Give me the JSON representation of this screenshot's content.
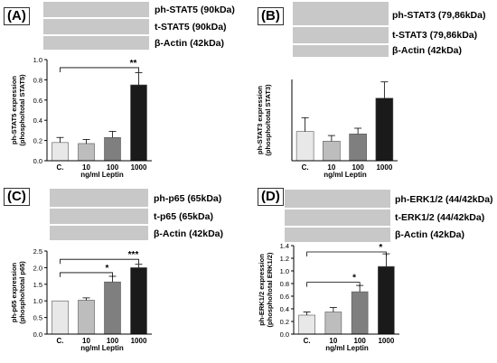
{
  "panels": {
    "A": {
      "label": "(A)",
      "bands": [
        "ph-STAT5 (90kDa)",
        "t-STAT5 (90kDa)",
        "β-Actin (42kDa)"
      ]
    },
    "B": {
      "label": "(B)",
      "bands": [
        "ph-STAT3 (79,86kDa)",
        "t-STAT3 (79,86kDa)",
        "β-Actin (42kDa)"
      ]
    },
    "C": {
      "label": "(C)",
      "bands": [
        "ph-p65 (65kDa)",
        "t-p65 (65kDa)",
        "β-Actin (42kDa)"
      ]
    },
    "D": {
      "label": "(D)",
      "bands": [
        "ph-ERK1/2 (44/42kDa)",
        "t-ERK1/2 (44/42kDa)",
        "β-Actin (42kDa)"
      ]
    }
  },
  "chart_data": [
    {
      "id": "A",
      "type": "bar",
      "categories": [
        "C.",
        "10",
        "100",
        "1000"
      ],
      "values": [
        0.18,
        0.17,
        0.23,
        0.75
      ],
      "errors": [
        0.05,
        0.04,
        0.06,
        0.12
      ],
      "colors": [
        "#e8e8e8",
        "#bdbdbd",
        "#7f7f7f",
        "#1a1a1a"
      ],
      "ylim": [
        0,
        1
      ],
      "yticks": [
        "0.0",
        "0.2",
        "0.4",
        "0.6",
        "0.8",
        "1.0"
      ],
      "ylabel": [
        "ph-STAT5 expression",
        "(phospho/total STAT5)"
      ],
      "xlabel": "ng/ml Leptin",
      "sig": [
        {
          "from": 0,
          "to": 3,
          "label": "**",
          "level": 0.92
        }
      ]
    },
    {
      "id": "B",
      "type": "bar",
      "categories": [
        "C.",
        "10",
        "100",
        "1000"
      ],
      "values": [
        0.36,
        0.24,
        0.33,
        0.77
      ],
      "errors": [
        0.17,
        0.07,
        0.07,
        0.2
      ],
      "colors": [
        "#e8e8e8",
        "#bdbdbd",
        "#7f7f7f",
        "#1a1a1a"
      ],
      "ylim": [
        0,
        1
      ],
      "yticks": [],
      "ylabel": [
        "ph-STAT3 expression",
        "(phospho/total STAT3)"
      ],
      "xlabel": "ng/ml Leptin",
      "sig": []
    },
    {
      "id": "C",
      "type": "bar",
      "categories": [
        "C.",
        "10",
        "100",
        "1000"
      ],
      "values": [
        1.0,
        1.02,
        1.57,
        2.0
      ],
      "errors": [
        0.0,
        0.07,
        0.17,
        0.1
      ],
      "colors": [
        "#e8e8e8",
        "#bdbdbd",
        "#7f7f7f",
        "#1a1a1a"
      ],
      "ylim": [
        0,
        2.5
      ],
      "yticks": [
        "0.0",
        "0.5",
        "1.0",
        "1.5",
        "2.0",
        "2.5"
      ],
      "ylabel": [
        "ph-p65 expression",
        "(phospho/total p65)"
      ],
      "xlabel": "ng/ml Leptin",
      "sig": [
        {
          "from": 0,
          "to": 2,
          "label": "*",
          "level": 1.85
        },
        {
          "from": 0,
          "to": 3,
          "label": "***",
          "level": 2.25
        }
      ]
    },
    {
      "id": "D",
      "type": "bar",
      "categories": [
        "C.",
        "10",
        "100",
        "1000"
      ],
      "values": [
        0.3,
        0.35,
        0.67,
        1.07
      ],
      "errors": [
        0.05,
        0.07,
        0.1,
        0.2
      ],
      "colors": [
        "#e8e8e8",
        "#bdbdbd",
        "#7f7f7f",
        "#1a1a1a"
      ],
      "ylim": [
        0,
        1.4
      ],
      "yticks": [
        "0.0",
        "0.2",
        "0.4",
        "0.6",
        "0.8",
        "1.0",
        "1.2",
        "1.4"
      ],
      "ylabel": [
        "ph-ERK1/2 expression",
        "(phospho/total ERK1/2)"
      ],
      "xlabel": "ng/ml Leptin",
      "sig": [
        {
          "from": 0,
          "to": 2,
          "label": "*",
          "level": 0.82
        },
        {
          "from": 0,
          "to": 3,
          "label": "*",
          "level": 1.3
        }
      ]
    }
  ]
}
